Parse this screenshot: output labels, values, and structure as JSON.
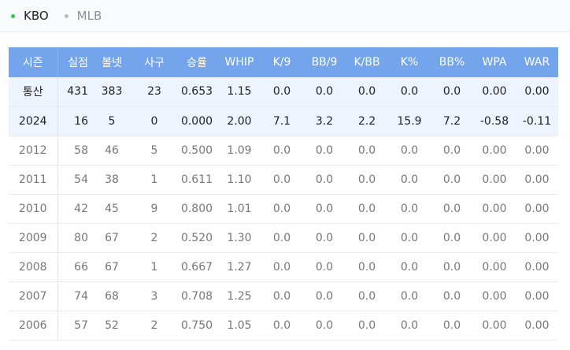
{
  "tabs": [
    {
      "label": "KBO",
      "active": true
    },
    {
      "label": "MLB",
      "active": false
    }
  ],
  "table": {
    "headers": [
      "시즌",
      "실점",
      "볼넷",
      "사구",
      "승률",
      "WHIP",
      "K/9",
      "BB/9",
      "K/BB",
      "K%",
      "BB%",
      "WPA",
      "WAR"
    ],
    "rows": [
      {
        "season": "통산",
        "highlight": true,
        "cells": [
          "431",
          "383",
          "23",
          "0.653",
          "1.15",
          "0.0",
          "0.0",
          "0.0",
          "0.0",
          "0.0",
          "0.00",
          "0.00"
        ]
      },
      {
        "season": "2024",
        "highlight": true,
        "cells": [
          "16",
          "5",
          "0",
          "0.000",
          "2.00",
          "7.1",
          "3.2",
          "2.2",
          "15.9",
          "7.2",
          "-0.58",
          "-0.11"
        ]
      },
      {
        "season": "2012",
        "highlight": false,
        "cells": [
          "58",
          "46",
          "5",
          "0.500",
          "1.09",
          "0.0",
          "0.0",
          "0.0",
          "0.0",
          "0.0",
          "0.00",
          "0.00"
        ]
      },
      {
        "season": "2011",
        "highlight": false,
        "cells": [
          "54",
          "38",
          "1",
          "0.611",
          "1.10",
          "0.0",
          "0.0",
          "0.0",
          "0.0",
          "0.0",
          "0.00",
          "0.00"
        ]
      },
      {
        "season": "2010",
        "highlight": false,
        "cells": [
          "42",
          "45",
          "9",
          "0.800",
          "1.01",
          "0.0",
          "0.0",
          "0.0",
          "0.0",
          "0.0",
          "0.00",
          "0.00"
        ]
      },
      {
        "season": "2009",
        "highlight": false,
        "cells": [
          "80",
          "67",
          "2",
          "0.520",
          "1.30",
          "0.0",
          "0.0",
          "0.0",
          "0.0",
          "0.0",
          "0.00",
          "0.00"
        ]
      },
      {
        "season": "2008",
        "highlight": false,
        "cells": [
          "66",
          "67",
          "1",
          "0.667",
          "1.27",
          "0.0",
          "0.0",
          "0.0",
          "0.0",
          "0.0",
          "0.00",
          "0.00"
        ]
      },
      {
        "season": "2007",
        "highlight": false,
        "cells": [
          "74",
          "68",
          "3",
          "0.708",
          "1.25",
          "0.0",
          "0.0",
          "0.0",
          "0.0",
          "0.0",
          "0.00",
          "0.00"
        ]
      },
      {
        "season": "2006",
        "highlight": false,
        "cells": [
          "57",
          "52",
          "2",
          "0.750",
          "1.05",
          "0.0",
          "0.0",
          "0.0",
          "0.0",
          "0.0",
          "0.00",
          "0.00"
        ]
      }
    ]
  },
  "colors": {
    "header_bg": "#73a4ec",
    "highlight_bg": "#eef4fd",
    "active_dot": "#2ec74a"
  }
}
